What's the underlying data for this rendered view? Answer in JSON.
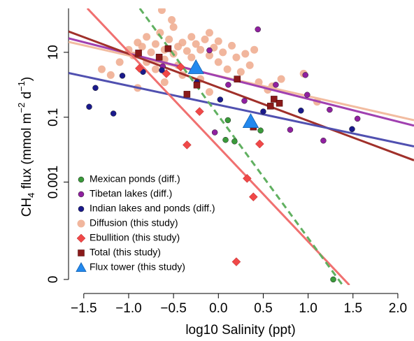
{
  "chart_data": {
    "type": "scatter",
    "xlabel": "log10 Salinity (ppt)",
    "ylabel": [
      "CH",
      "4",
      " flux (mmol m",
      "−2",
      " d",
      "−1",
      ")"
    ],
    "xlim": [
      -1.67,
      2.18
    ],
    "ylim": [
      6.7e-07,
      226
    ],
    "ylog": true,
    "legend": "bottom-left",
    "xticks": [
      {
        "value": -1.5,
        "label": "−1.5"
      },
      {
        "value": -1,
        "label": "−1.0"
      },
      {
        "value": -0.5,
        "label": "−0.5"
      },
      {
        "value": 0,
        "label": "0.0"
      },
      0.5,
      {
        "value": 1,
        "label": "1.0"
      },
      1.5,
      {
        "value": 2,
        "label": "2.0"
      }
    ],
    "yticks": [
      {
        "value": 1e-06,
        "label": "0"
      },
      0.001,
      0.1,
      10
    ],
    "series": [
      {
        "name": "Mexican ponds (diff.)",
        "color": "#3a9a3a",
        "marker": "circle",
        "x": [
          0.106,
          0.08,
          0.18,
          0.47,
          1.28
        ],
        "values": [
          0.081,
          0.02,
          0.018,
          0.039,
          1e-06
        ]
      },
      {
        "name": "Tibetan lakes (diff.)",
        "color": "#9020a0",
        "marker": "circle",
        "x": [
          0.44,
          0.97,
          0.99,
          1.24,
          1.55,
          1.17,
          0.8,
          -0.04,
          0.29,
          0.11,
          -0.62,
          -0.1,
          0.64
        ],
        "values": [
          51,
          2.0,
          0.49,
          0.17,
          0.09,
          0.019,
          0.041,
          0.034,
          0.32,
          1.0,
          3.7,
          11.5,
          1.0
        ]
      },
      {
        "name": "Indian lakes and ponds (diff.)",
        "color": "#1a1a8c",
        "marker": "circle",
        "x": [
          -1.44,
          -1.17,
          -1.07,
          -0.84,
          -0.63,
          -0.24,
          0.02,
          0.5,
          0.92,
          1.49,
          -1.37
        ],
        "values": [
          0.21,
          0.13,
          1.9,
          2.5,
          2.8,
          1.2,
          0.35,
          0.15,
          0.16,
          0.043,
          0.8
        ]
      },
      {
        "name": "Diffusion (this study)",
        "color": "#eea98c",
        "marker": "circle",
        "x": [
          -1.0,
          -0.95,
          -0.9,
          -0.85,
          -0.8,
          -0.8,
          -0.75,
          -0.7,
          -0.7,
          -0.65,
          -0.6,
          -0.6,
          -0.55,
          -0.5,
          -0.5,
          -0.45,
          -0.45,
          -0.4,
          -0.4,
          -0.35,
          -0.3,
          -0.3,
          -0.25,
          -0.2,
          -0.2,
          -0.15,
          -0.1,
          -0.1,
          -0.05,
          0.0,
          0.0,
          0.05,
          0.1,
          0.15,
          0.2,
          0.25,
          0.3,
          0.35,
          0.45,
          0.55,
          0.7,
          0.95,
          1.1,
          -1.2,
          -1.1,
          -0.9,
          -0.6,
          -0.1,
          0.4,
          0.6,
          -1.3,
          -0.63,
          -0.52
        ],
        "values": [
          12,
          8,
          20,
          15,
          5,
          30,
          10,
          18,
          3,
          40,
          12,
          6,
          25,
          9,
          60,
          15,
          4,
          20,
          2,
          11,
          30,
          7,
          18,
          12,
          1.5,
          25,
          8,
          40,
          14,
          5,
          22,
          10,
          3,
          16,
          7,
          2.5,
          9,
          4,
          1.2,
          0.7,
          1.5,
          2.2,
          0.3,
          2,
          5,
          0.8,
          1.2,
          0.6,
          12,
          0.9,
          3,
          200,
          100
        ]
      },
      {
        "name": "Ebullition (this study)",
        "color": "#f04848",
        "marker": "diamond",
        "x": [
          -0.88,
          -0.58,
          -0.42,
          -0.21,
          -0.35,
          0.46,
          0.32,
          0.39,
          0.2
        ],
        "values": [
          3.2,
          2.2,
          3.5,
          0.15,
          0.014,
          0.015,
          0.0013,
          0.00035,
          3.5e-06
        ]
      },
      {
        "name": "Total (this study)",
        "color": "#8b1a1a",
        "marker": "square",
        "x": [
          -0.89,
          -0.66,
          -0.56,
          -0.35,
          -0.24,
          0.21,
          0.62,
          0.68,
          0.39,
          0.58
        ],
        "values": [
          9.5,
          7.1,
          13,
          0.51,
          0.98,
          1.5,
          0.36,
          0.27,
          0.05,
          0.22
        ]
      },
      {
        "name": "Flux tower (this study)",
        "color": "#2288ee",
        "marker": "triangle",
        "x": [
          -0.25,
          0.36
        ],
        "values": [
          3.4,
          0.074
        ]
      }
    ],
    "fits": [
      {
        "color": "#f2bca0",
        "dash": false,
        "x": [
          -1.67,
          2.18
        ],
        "values": [
          21,
          0.081
        ]
      },
      {
        "color": "#a040b0",
        "dash": false,
        "x": [
          -1.67,
          2.18
        ],
        "values": [
          27,
          0.055
        ]
      },
      {
        "color": "#a0302a",
        "dash": false,
        "x": [
          -1.67,
          2.18
        ],
        "values": [
          44,
          0.0047
        ]
      },
      {
        "color": "#5050b0",
        "dash": false,
        "x": [
          -1.67,
          2.18
        ],
        "values": [
          2.3,
          0.0126
        ]
      },
      {
        "color": "#f07070",
        "dash": false,
        "x": [
          -1.46,
          1.46
        ],
        "values": [
          226,
          6.7e-07
        ]
      },
      {
        "color": "#60b060",
        "dash": true,
        "x": [
          -0.876,
          1.384
        ],
        "values": [
          226,
          6.7e-07
        ]
      }
    ]
  }
}
